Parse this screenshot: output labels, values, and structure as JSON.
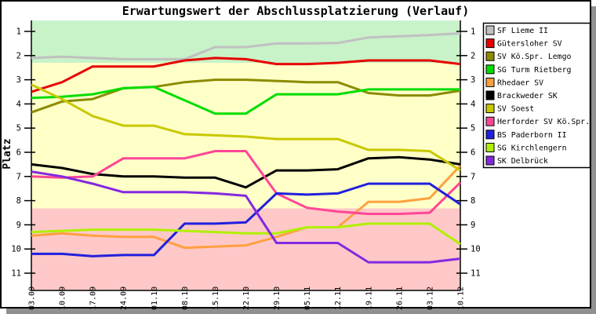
{
  "chart_data": {
    "type": "line",
    "title": "Erwartungswert der Abschlussplatzierung (Verlauf)",
    "ylabel": "Platz",
    "x_labels": [
      "03.09",
      "10.09",
      "17.09",
      "24.09",
      "01.10",
      "08.10",
      "15.10",
      "22.10",
      "29.10",
      "05.11",
      "12.11",
      "19.11",
      "26.11",
      "03.12",
      "10.12"
    ],
    "y_ticks": [
      1,
      2,
      3,
      4,
      5,
      6,
      7,
      8,
      9,
      10,
      11
    ],
    "ylim": [
      1,
      11
    ],
    "y_axis_inverted": true,
    "grid": false,
    "legend_position": "top-right",
    "zones": [
      {
        "name": "promotion-zone",
        "from": 0.55,
        "to": 2.3,
        "color": "#C8F2C8"
      },
      {
        "name": "midfield-zone",
        "from": 2.3,
        "to": 8.32,
        "color": "#FFFFC8"
      },
      {
        "name": "relegation-zone",
        "from": 8.32,
        "to": 11.72,
        "color": "#FFC8C8"
      }
    ],
    "series": [
      {
        "name": "SF Lieme II",
        "color": "#C0C0C0",
        "values": [
          2.1,
          2.05,
          2.1,
          2.15,
          2.15,
          2.15,
          1.65,
          1.65,
          1.5,
          1.5,
          1.48,
          1.25,
          1.2,
          1.15,
          1.08
        ]
      },
      {
        "name": "Gütersloher SV",
        "color": "#E60000",
        "values": [
          3.5,
          3.1,
          2.45,
          2.45,
          2.45,
          2.2,
          2.1,
          2.15,
          2.35,
          2.35,
          2.3,
          2.2,
          2.2,
          2.2,
          2.35
        ]
      },
      {
        "name": "SV Kö.Spr. Lemgo",
        "color": "#8B8B00",
        "values": [
          4.35,
          3.9,
          3.8,
          3.35,
          3.3,
          3.1,
          3.0,
          3.0,
          3.05,
          3.1,
          3.1,
          3.55,
          3.65,
          3.65,
          3.45
        ]
      },
      {
        "name": "SG Turm Rietberg",
        "color": "#00DD00",
        "values": [
          3.75,
          3.7,
          3.6,
          3.35,
          3.3,
          3.85,
          4.4,
          4.4,
          3.6,
          3.6,
          3.6,
          3.4,
          3.4,
          3.4,
          3.4
        ]
      },
      {
        "name": "Rhedaer SV",
        "color": "#FFA040",
        "values": [
          9.45,
          9.35,
          9.45,
          9.5,
          9.5,
          9.95,
          9.9,
          9.85,
          9.5,
          9.1,
          9.1,
          8.05,
          8.05,
          7.9,
          6.55
        ]
      },
      {
        "name": "Brackweder SK",
        "color": "#000000",
        "values": [
          6.5,
          6.65,
          6.9,
          7.0,
          7.0,
          7.05,
          7.05,
          7.45,
          6.75,
          6.75,
          6.7,
          6.25,
          6.2,
          6.3,
          6.5
        ]
      },
      {
        "name": "SV Soest",
        "color": "#C8C800",
        "values": [
          3.2,
          3.8,
          4.5,
          4.9,
          4.9,
          5.25,
          5.3,
          5.35,
          5.45,
          5.45,
          5.45,
          5.9,
          5.9,
          5.95,
          6.75
        ]
      },
      {
        "name": "Herforder SV Kö.Spr.",
        "color": "#FF4696",
        "values": [
          7.0,
          7.05,
          7.0,
          6.25,
          6.25,
          6.25,
          5.95,
          5.95,
          7.7,
          8.3,
          8.45,
          8.55,
          8.55,
          8.5,
          7.25
        ]
      },
      {
        "name": "BS Paderborn II",
        "color": "#2020DC",
        "values": [
          10.2,
          10.2,
          10.3,
          10.25,
          10.25,
          8.95,
          8.95,
          8.9,
          7.7,
          7.75,
          7.7,
          7.3,
          7.3,
          7.3,
          8.15
        ]
      },
      {
        "name": "SG Kirchlengern",
        "color": "#B0F000",
        "values": [
          9.3,
          9.25,
          9.2,
          9.2,
          9.2,
          9.25,
          9.3,
          9.35,
          9.35,
          9.1,
          9.1,
          8.95,
          8.95,
          8.95,
          9.8
        ]
      },
      {
        "name": "SK Delbrück",
        "color": "#8428E0",
        "values": [
          6.8,
          7.0,
          7.3,
          7.65,
          7.65,
          7.65,
          7.7,
          7.8,
          9.75,
          9.75,
          9.75,
          10.55,
          10.55,
          10.55,
          10.4
        ]
      }
    ],
    "frame": {
      "background": "#FFFFFF",
      "border_color": "#000000",
      "shadow_color": "#909090"
    }
  }
}
